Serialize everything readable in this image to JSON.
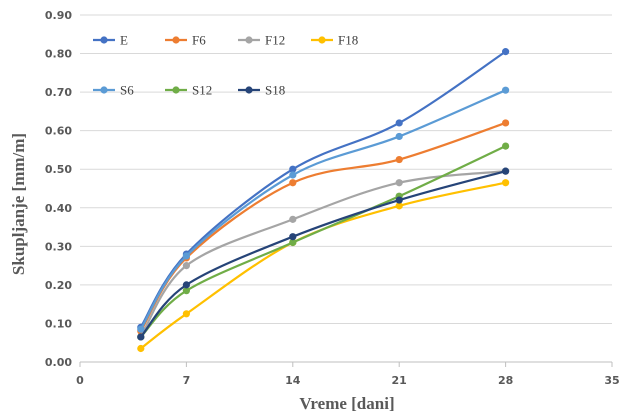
{
  "chart_data": {
    "type": "line",
    "xlabel": "Vreme [dani]",
    "ylabel": "Skupljanje [mm/m]",
    "xlim": [
      0,
      35
    ],
    "ylim": [
      0,
      0.9
    ],
    "xticks": [
      0,
      7,
      14,
      21,
      28,
      35
    ],
    "yticks": [
      "0.00",
      "0.10",
      "0.20",
      "0.30",
      "0.40",
      "0.50",
      "0.60",
      "0.70",
      "0.80",
      "0.90"
    ],
    "grid": true,
    "legend": "top-left",
    "x": [
      4,
      7,
      14,
      21,
      28
    ],
    "series": [
      {
        "name": "E",
        "color": "#4472C4",
        "values": [
          0.09,
          0.28,
          0.5,
          0.62,
          0.805
        ]
      },
      {
        "name": "F6",
        "color": "#ED7D31",
        "values": [
          0.08,
          0.27,
          0.465,
          0.525,
          0.62
        ]
      },
      {
        "name": "F12",
        "color": "#A5A5A5",
        "values": [
          0.065,
          0.25,
          0.37,
          0.465,
          0.495
        ]
      },
      {
        "name": "F18",
        "color": "#FFC000",
        "values": [
          0.035,
          0.125,
          0.31,
          0.405,
          0.465
        ]
      },
      {
        "name": "S6",
        "color": "#5B9BD5",
        "values": [
          0.085,
          0.275,
          0.485,
          0.585,
          0.705
        ]
      },
      {
        "name": "S12",
        "color": "#70AD47",
        "values": [
          0.065,
          0.185,
          0.31,
          0.43,
          0.56
        ]
      },
      {
        "name": "S18",
        "color": "#264478",
        "values": [
          0.065,
          0.2,
          0.325,
          0.42,
          0.495
        ]
      }
    ]
  }
}
